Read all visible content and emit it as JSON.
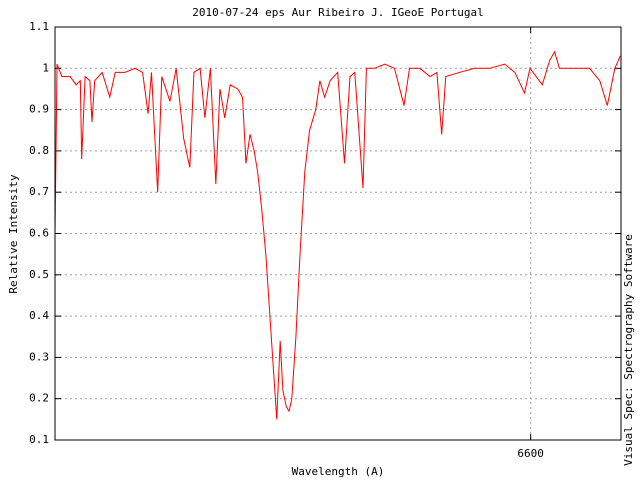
{
  "chart_data": {
    "type": "line",
    "title": "2010-07-24 eps Aur Ribeiro J. IGeoE Portugal",
    "x_label": "Wavelength (A)",
    "y_label": "Relative Intensity",
    "side_note": "Visual Spec: Spectrography Software",
    "x": [
      6530.5,
      6530.8,
      6531.5,
      6532.7,
      6533.6,
      6534.2,
      6534.4,
      6534.9,
      6535.6,
      6535.9,
      6536.3,
      6537.4,
      6538.5,
      6539.3,
      6540.7,
      6542.2,
      6543.3,
      6544.1,
      6544.6,
      6545.5,
      6546.1,
      6547.3,
      6548.2,
      6549.3,
      6550.2,
      6550.8,
      6551.7,
      6552.4,
      6553.2,
      6554.0,
      6554.6,
      6555.3,
      6556.1,
      6557.2,
      6557.9,
      6558.4,
      6559.0,
      6559.6,
      6560.1,
      6560.7,
      6561.3,
      6561.9,
      6562.5,
      6562.9,
      6563.4,
      6563.8,
      6564.3,
      6564.7,
      6565.1,
      6565.7,
      6566.3,
      6567.0,
      6567.7,
      6568.6,
      6569.2,
      6569.9,
      6570.7,
      6571.8,
      6572.8,
      6573.6,
      6574.3,
      6575.5,
      6576.0,
      6577.2,
      6578.7,
      6580.1,
      6581.5,
      6582.3,
      6583.8,
      6585.3,
      6586.3,
      6587.0,
      6587.6,
      6589.6,
      6591.8,
      6594.0,
      6596.2,
      6597.7,
      6599.1,
      6599.9,
      6601.7,
      6602.8,
      6603.5,
      6604.2,
      6606.4,
      6608.6,
      6610.1,
      6611.2,
      6612.3,
      6613.1
    ],
    "series": [
      {
        "name": "eps Aur",
        "color": "#ff0000",
        "values": [
          0.6,
          1.01,
          0.98,
          0.98,
          0.96,
          0.97,
          0.78,
          0.98,
          0.97,
          0.87,
          0.97,
          0.99,
          0.93,
          0.99,
          0.99,
          1.0,
          0.99,
          0.89,
          0.99,
          0.7,
          0.98,
          0.92,
          1.0,
          0.83,
          0.76,
          0.99,
          1.0,
          0.88,
          1.0,
          0.72,
          0.95,
          0.88,
          0.96,
          0.95,
          0.93,
          0.77,
          0.84,
          0.8,
          0.75,
          0.66,
          0.55,
          0.4,
          0.25,
          0.15,
          0.34,
          0.22,
          0.18,
          0.17,
          0.2,
          0.35,
          0.55,
          0.75,
          0.85,
          0.9,
          0.97,
          0.93,
          0.97,
          0.99,
          0.77,
          0.98,
          0.99,
          0.71,
          1.0,
          1.0,
          1.01,
          1.0,
          0.91,
          1.0,
          1.0,
          0.98,
          0.99,
          0.84,
          0.98,
          0.99,
          1.0,
          1.0,
          1.01,
          0.99,
          0.94,
          1.0,
          0.96,
          1.02,
          1.04,
          1.0,
          1.0,
          1.0,
          0.97,
          0.91,
          1.0,
          1.03
        ]
      }
    ],
    "xlim": [
      6530.5,
      6613.2
    ],
    "xticks": [
      6600
    ],
    "ylim": [
      0.1,
      1.1
    ],
    "yticks": [
      0.1,
      0.2,
      0.3,
      0.4,
      0.5,
      0.6,
      0.7,
      0.8,
      0.9,
      1,
      1.1
    ],
    "grid": true
  }
}
